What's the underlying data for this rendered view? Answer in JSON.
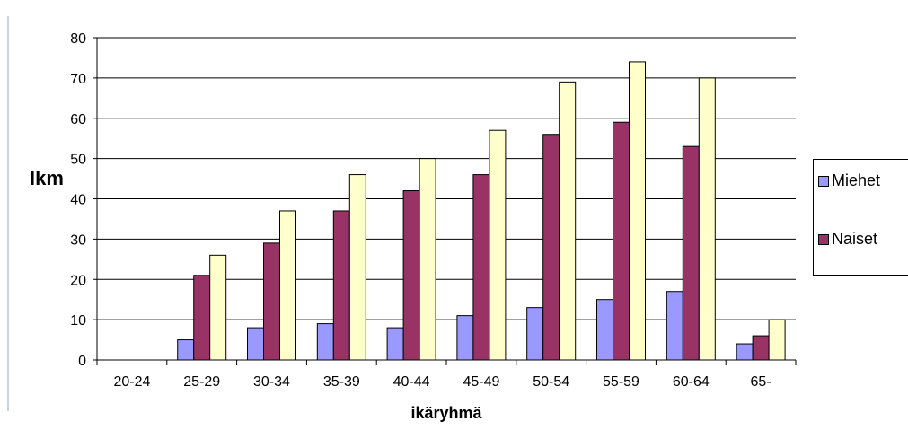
{
  "chart_data": {
    "type": "bar",
    "title": "",
    "xlabel": "ikäryhmä",
    "ylabel": "lkm",
    "ylim": [
      0,
      80
    ],
    "yticks": [
      0,
      10,
      20,
      30,
      40,
      50,
      60,
      70,
      80
    ],
    "grid": true,
    "legend_position": "right",
    "categories": [
      "20-24",
      "25-29",
      "30-34",
      "35-39",
      "40-44",
      "45-49",
      "50-54",
      "55-59",
      "60-64",
      "65-"
    ],
    "series": [
      {
        "name": "Miehet",
        "color": "#9999ff",
        "values": [
          0,
          5,
          8,
          9,
          8,
          11,
          13,
          15,
          17,
          4
        ]
      },
      {
        "name": "Naiset",
        "color": "#993366",
        "values": [
          0,
          21,
          29,
          37,
          42,
          46,
          56,
          59,
          53,
          6
        ]
      },
      {
        "name": "",
        "color": "#ffffcc",
        "values": [
          0,
          26,
          37,
          46,
          50,
          57,
          69,
          74,
          70,
          10
        ]
      }
    ]
  }
}
